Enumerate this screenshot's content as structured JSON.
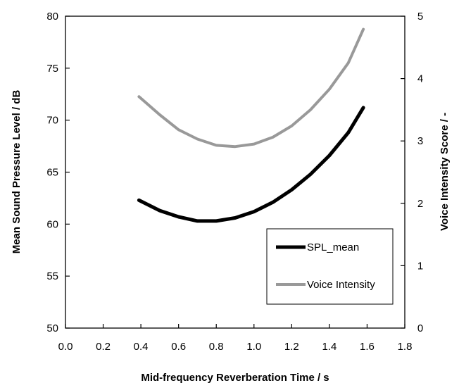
{
  "chart_data": {
    "type": "line",
    "title": "",
    "xlabel": "Mid-frequency Reverberation Time / s",
    "ylabel_left": "Mean Sound Pressure Level / dB",
    "ylabel_right": "Voice Intensity Score / -",
    "xlim": [
      0.0,
      1.8
    ],
    "ylim_left": [
      50,
      80
    ],
    "ylim_right": [
      0,
      5
    ],
    "x_ticks": [
      "0.0",
      "0.2",
      "0.4",
      "0.6",
      "0.8",
      "1.0",
      "1.2",
      "1.4",
      "1.6",
      "1.8"
    ],
    "y_left_ticks": [
      "50",
      "55",
      "60",
      "65",
      "70",
      "75",
      "80"
    ],
    "y_right_ticks": [
      "0",
      "1",
      "2",
      "3",
      "4",
      "5"
    ],
    "grid": false,
    "legend_position": "lower-right",
    "series": [
      {
        "name": "SPL_mean",
        "axis": "left",
        "color": "#000000",
        "x": [
          0.39,
          0.5,
          0.6,
          0.7,
          0.8,
          0.9,
          1.0,
          1.1,
          1.2,
          1.3,
          1.4,
          1.5,
          1.58
        ],
        "y": [
          62.3,
          61.3,
          60.7,
          60.3,
          60.3,
          60.6,
          61.2,
          62.1,
          63.3,
          64.8,
          66.6,
          68.8,
          71.2
        ]
      },
      {
        "name": "Voice Intensity",
        "axis": "right",
        "color": "#999999",
        "x": [
          0.39,
          0.5,
          0.6,
          0.7,
          0.8,
          0.9,
          1.0,
          1.1,
          1.2,
          1.3,
          1.4,
          1.5,
          1.58
        ],
        "y": [
          3.71,
          3.42,
          3.18,
          3.03,
          2.93,
          2.91,
          2.95,
          3.06,
          3.24,
          3.5,
          3.83,
          4.25,
          4.79
        ]
      }
    ]
  }
}
